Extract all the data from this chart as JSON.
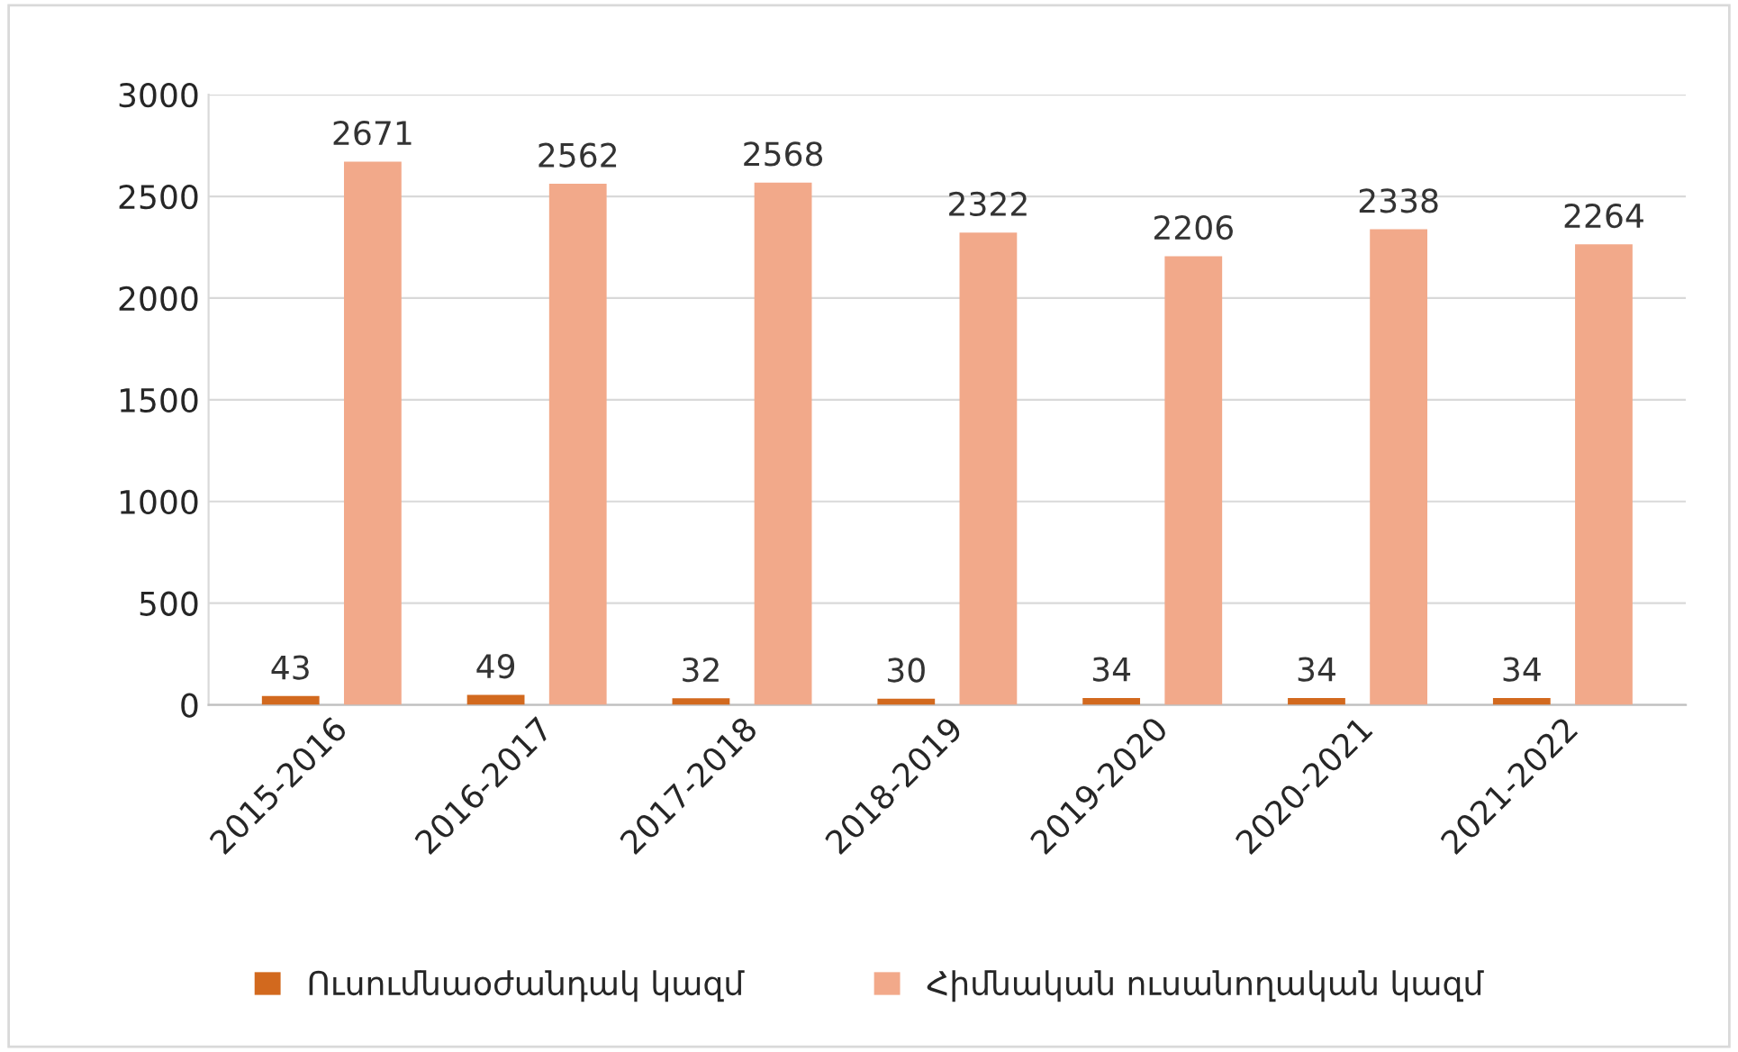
{
  "chart_data": {
    "type": "bar",
    "categories": [
      "2015-2016",
      "2016-2017",
      "2017-2018",
      "2018-2019",
      "2019-2020",
      "2020-2021",
      "2021-2022"
    ],
    "series": [
      {
        "name": "Ուսումնաօժանդակ կազմ",
        "color": "#d2691e",
        "values": [
          43,
          49,
          32,
          30,
          34,
          34,
          34
        ]
      },
      {
        "name": "Հիմնական ուսանողական կազմ",
        "color": "#f2a98a",
        "values": [
          2671,
          2562,
          2568,
          2322,
          2206,
          2338,
          2264
        ]
      }
    ],
    "ylim": [
      0,
      3000
    ],
    "yticks": [
      0,
      500,
      1000,
      1500,
      2000,
      2500,
      3000
    ],
    "grid": "y",
    "legend": "bottom",
    "data_labels": true
  }
}
